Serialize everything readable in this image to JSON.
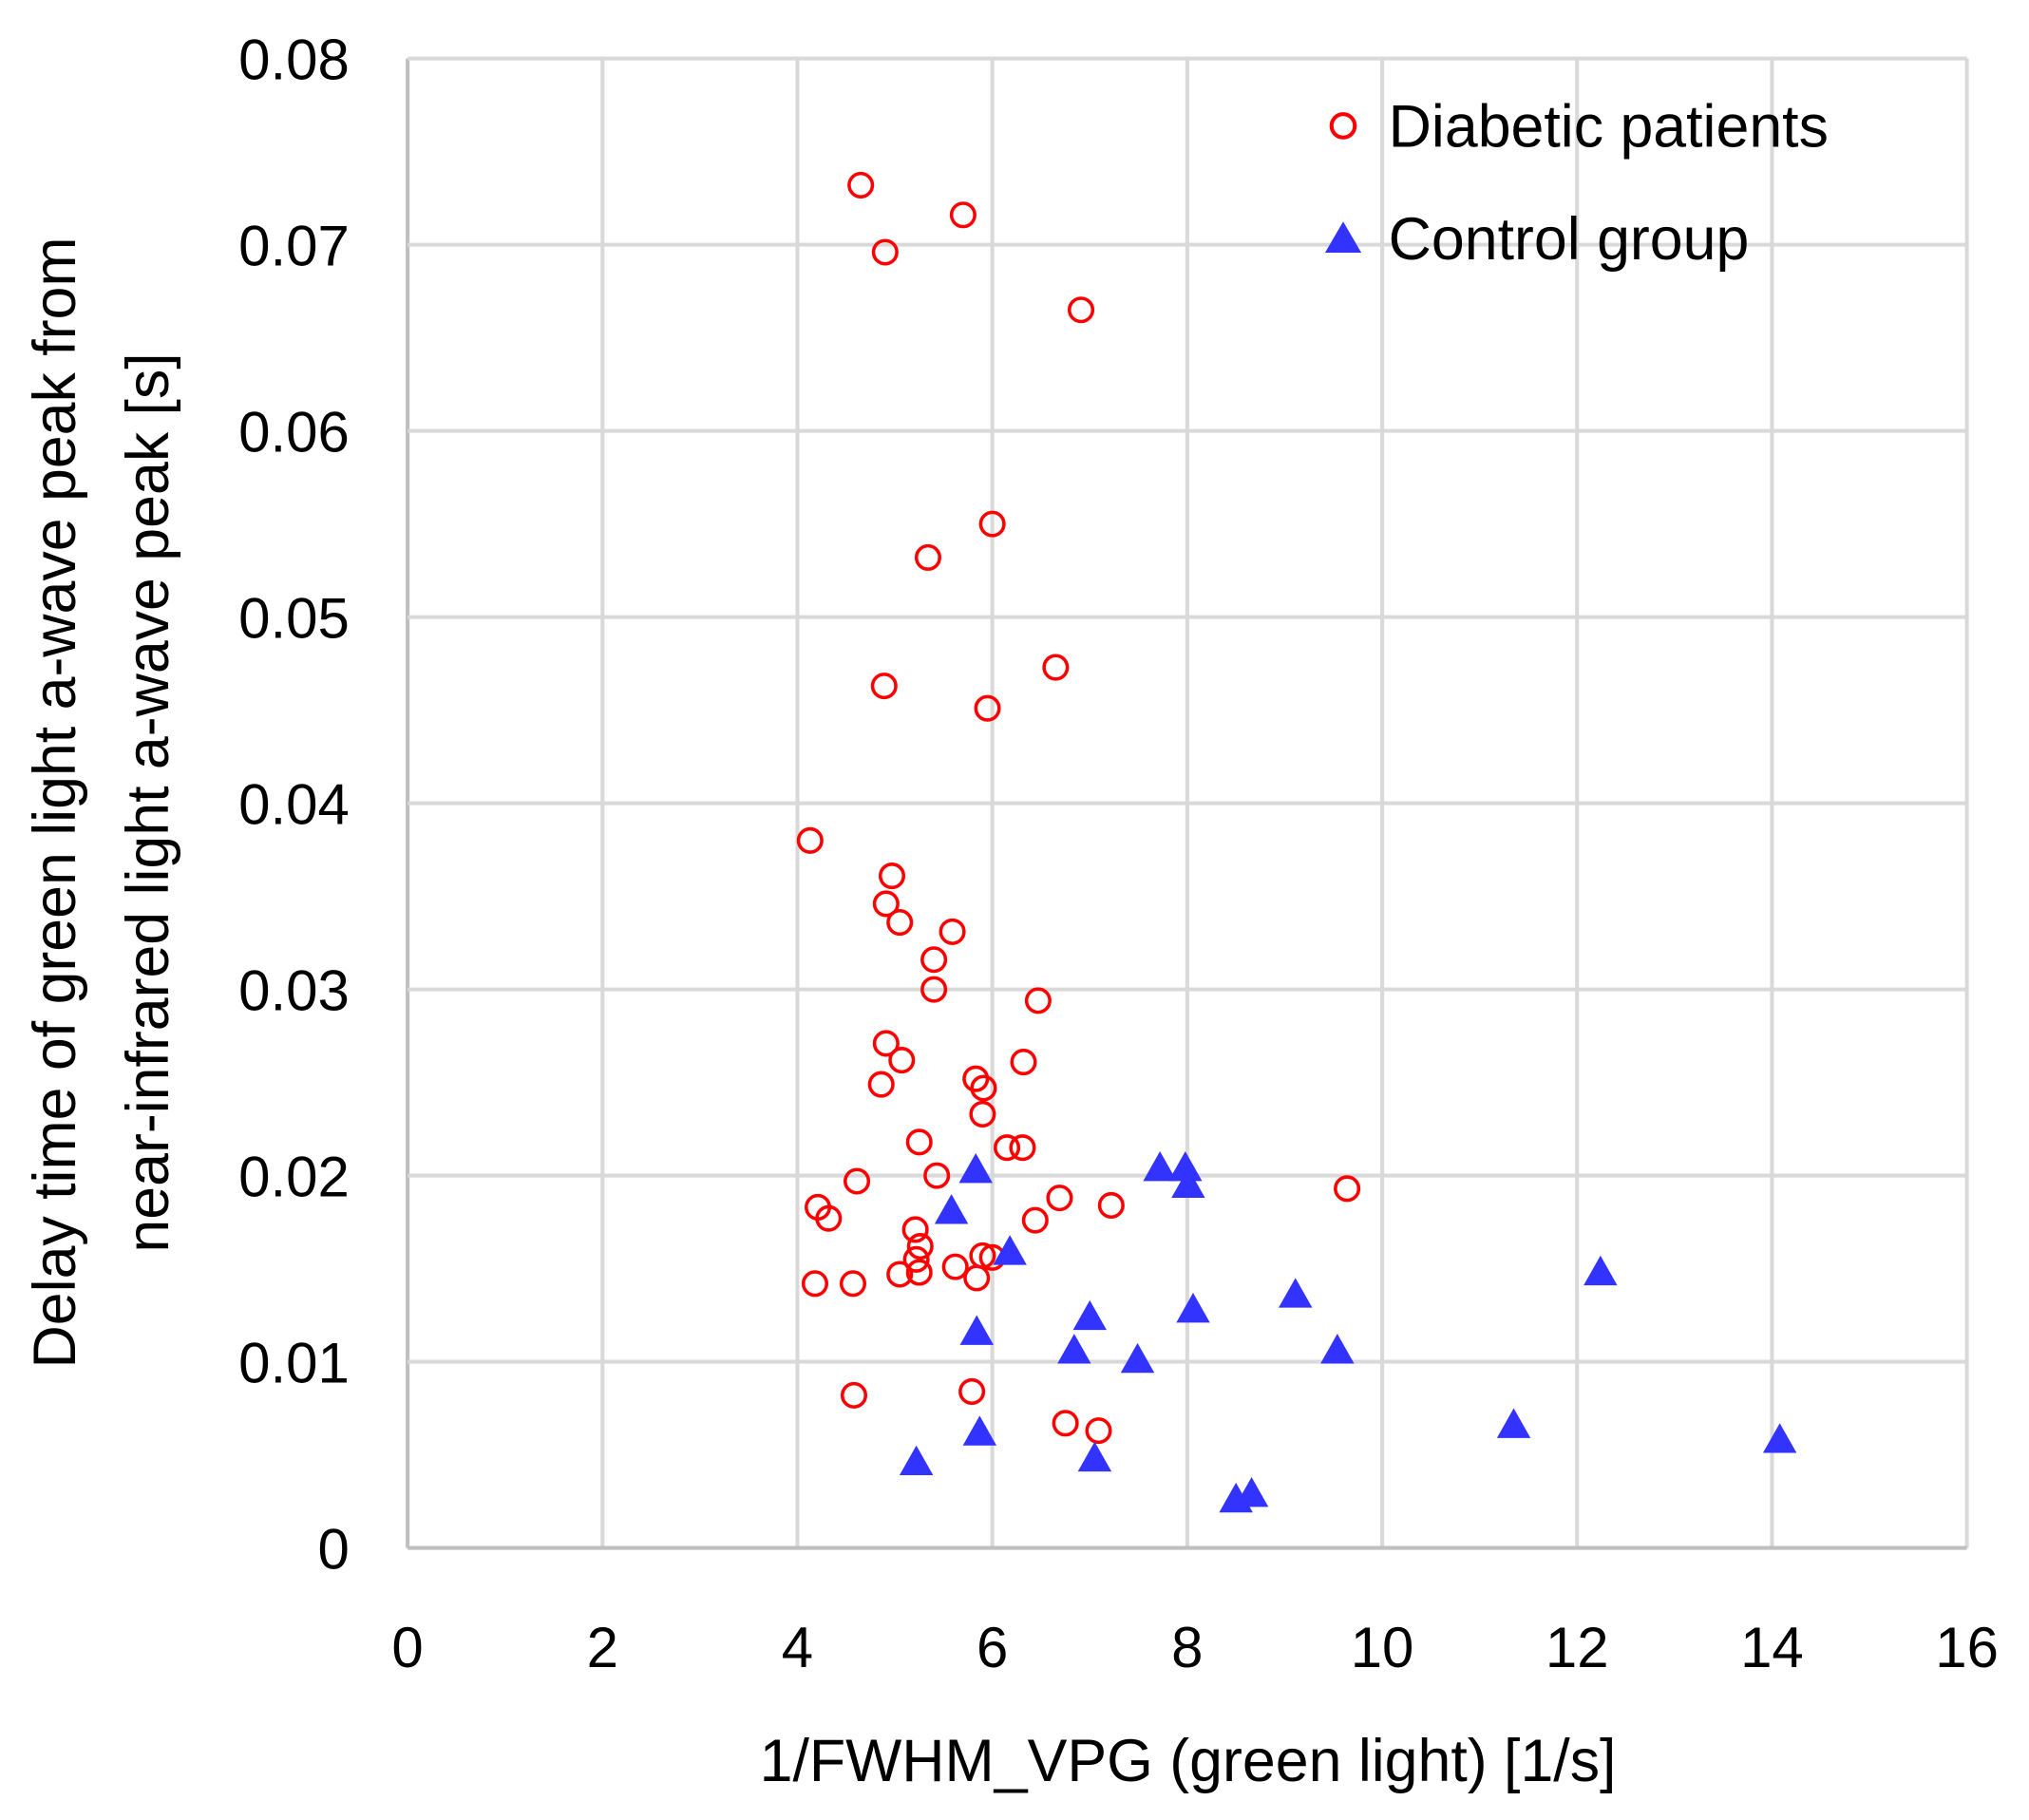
{
  "chart_data": {
    "type": "scatter",
    "title": "",
    "xlabel": "1/FWHM_VPG (green light) [1/s]",
    "ylabel_lines": [
      "Delay time of green light a-wave peak from",
      "near-infrared light a-wave peak [s]"
    ],
    "xlim": [
      0,
      16
    ],
    "ylim": [
      0,
      0.08
    ],
    "xticks": [
      "0",
      "2",
      "4",
      "6",
      "8",
      "10",
      "12",
      "14",
      "16"
    ],
    "yticks": [
      "0",
      "0.01",
      "0.02",
      "0.03",
      "0.04",
      "0.05",
      "0.06",
      "0.07",
      "0.08"
    ],
    "grid": true,
    "legend_position": "top-right",
    "series": [
      {
        "name": "Diabetic patients",
        "marker": "open-circle",
        "color": "#ff0000",
        "points": [
          [
            4.65,
            0.0732
          ],
          [
            5.7,
            0.0716
          ],
          [
            4.9,
            0.0696
          ],
          [
            6.91,
            0.0665
          ],
          [
            6.0,
            0.055
          ],
          [
            5.34,
            0.0532
          ],
          [
            4.89,
            0.0463
          ],
          [
            6.65,
            0.0473
          ],
          [
            5.95,
            0.0451
          ],
          [
            4.13,
            0.038
          ],
          [
            4.97,
            0.0361
          ],
          [
            4.91,
            0.0346
          ],
          [
            5.05,
            0.0336
          ],
          [
            5.59,
            0.0331
          ],
          [
            5.4,
            0.0316
          ],
          [
            5.4,
            0.03
          ],
          [
            6.47,
            0.0294
          ],
          [
            4.91,
            0.0271
          ],
          [
            5.07,
            0.0262
          ],
          [
            6.32,
            0.0261
          ],
          [
            4.86,
            0.0249
          ],
          [
            5.83,
            0.0252
          ],
          [
            5.91,
            0.0247
          ],
          [
            5.9,
            0.0233
          ],
          [
            5.25,
            0.0218
          ],
          [
            6.15,
            0.0215
          ],
          [
            6.31,
            0.0215
          ],
          [
            5.43,
            0.02
          ],
          [
            4.61,
            0.0197
          ],
          [
            6.69,
            0.0188
          ],
          [
            7.22,
            0.0184
          ],
          [
            9.64,
            0.0193
          ],
          [
            4.21,
            0.0183
          ],
          [
            4.32,
            0.0177
          ],
          [
            6.44,
            0.0176
          ],
          [
            5.21,
            0.0171
          ],
          [
            5.26,
            0.0162
          ],
          [
            5.22,
            0.0155
          ],
          [
            5.62,
            0.0151
          ],
          [
            5.9,
            0.0157
          ],
          [
            6.0,
            0.0156
          ],
          [
            5.25,
            0.0148
          ],
          [
            5.05,
            0.0147
          ],
          [
            5.84,
            0.0145
          ],
          [
            4.18,
            0.0142
          ],
          [
            4.57,
            0.0142
          ],
          [
            4.58,
            0.0082
          ],
          [
            5.79,
            0.0084
          ],
          [
            6.75,
            0.0067
          ],
          [
            7.09,
            0.0063
          ]
        ]
      },
      {
        "name": "Control group",
        "marker": "filled-triangle",
        "color": "#3333ff",
        "points": [
          [
            5.83,
            0.0203
          ],
          [
            5.58,
            0.0181
          ],
          [
            6.18,
            0.0159
          ],
          [
            7.72,
            0.0204
          ],
          [
            7.98,
            0.0204
          ],
          [
            8.01,
            0.0195
          ],
          [
            12.24,
            0.0148
          ],
          [
            9.11,
            0.0136
          ],
          [
            8.06,
            0.0128
          ],
          [
            7.0,
            0.0124
          ],
          [
            5.84,
            0.0116
          ],
          [
            9.54,
            0.0106
          ],
          [
            6.84,
            0.0106
          ],
          [
            7.49,
            0.0101
          ],
          [
            11.35,
            0.0066
          ],
          [
            14.08,
            0.0058
          ],
          [
            5.87,
            0.0062
          ],
          [
            7.05,
            0.0048
          ],
          [
            5.22,
            0.0046
          ],
          [
            8.5,
            0.0026
          ],
          [
            8.66,
            0.0029
          ]
        ]
      }
    ]
  }
}
